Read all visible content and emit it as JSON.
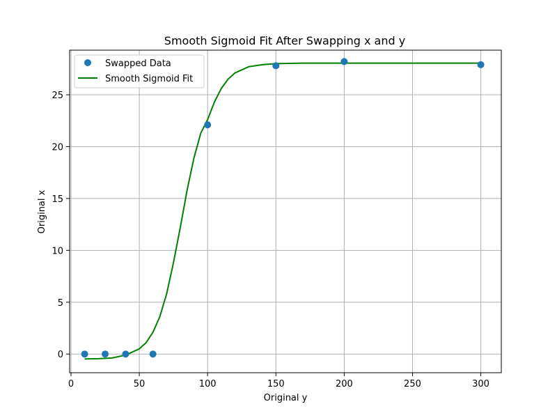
{
  "chart_data": {
    "type": "scatter",
    "title": "Smooth Sigmoid Fit After Swapping x and y",
    "xlabel": "Original y",
    "ylabel": "Original x",
    "xlim": [
      -1,
      315
    ],
    "ylim": [
      -1.8,
      29.3
    ],
    "xticks": [
      0,
      50,
      100,
      150,
      200,
      250,
      300
    ],
    "yticks": [
      0,
      5,
      10,
      15,
      20,
      25
    ],
    "grid": true,
    "legend_position": "top-left",
    "series": [
      {
        "name": "Swapped Data",
        "kind": "scatter",
        "color": "#1f77b4",
        "points": [
          {
            "x": 10,
            "y": 0
          },
          {
            "x": 25,
            "y": 0
          },
          {
            "x": 40,
            "y": 0
          },
          {
            "x": 60,
            "y": 0
          },
          {
            "x": 100,
            "y": 22.1
          },
          {
            "x": 150,
            "y": 27.8
          },
          {
            "x": 200,
            "y": 28.2
          },
          {
            "x": 300,
            "y": 27.9
          }
        ]
      },
      {
        "name": "Smooth Sigmoid Fit",
        "kind": "line",
        "color": "#008000",
        "points": [
          {
            "x": 10,
            "y": -0.47
          },
          {
            "x": 20,
            "y": -0.45
          },
          {
            "x": 30,
            "y": -0.38
          },
          {
            "x": 40,
            "y": -0.1
          },
          {
            "x": 50,
            "y": 0.5
          },
          {
            "x": 55,
            "y": 1.1
          },
          {
            "x": 60,
            "y": 2.1
          },
          {
            "x": 65,
            "y": 3.6
          },
          {
            "x": 70,
            "y": 5.8
          },
          {
            "x": 75,
            "y": 8.8
          },
          {
            "x": 80,
            "y": 12.2
          },
          {
            "x": 85,
            "y": 15.8
          },
          {
            "x": 90,
            "y": 18.9
          },
          {
            "x": 95,
            "y": 21.3
          },
          {
            "x": 100,
            "y": 22.6
          },
          {
            "x": 105,
            "y": 24.3
          },
          {
            "x": 110,
            "y": 25.6
          },
          {
            "x": 115,
            "y": 26.5
          },
          {
            "x": 120,
            "y": 27.1
          },
          {
            "x": 130,
            "y": 27.7
          },
          {
            "x": 140,
            "y": 27.9
          },
          {
            "x": 150,
            "y": 28.0
          },
          {
            "x": 170,
            "y": 28.05
          },
          {
            "x": 200,
            "y": 28.05
          },
          {
            "x": 250,
            "y": 28.05
          },
          {
            "x": 300,
            "y": 28.05
          }
        ]
      }
    ]
  }
}
